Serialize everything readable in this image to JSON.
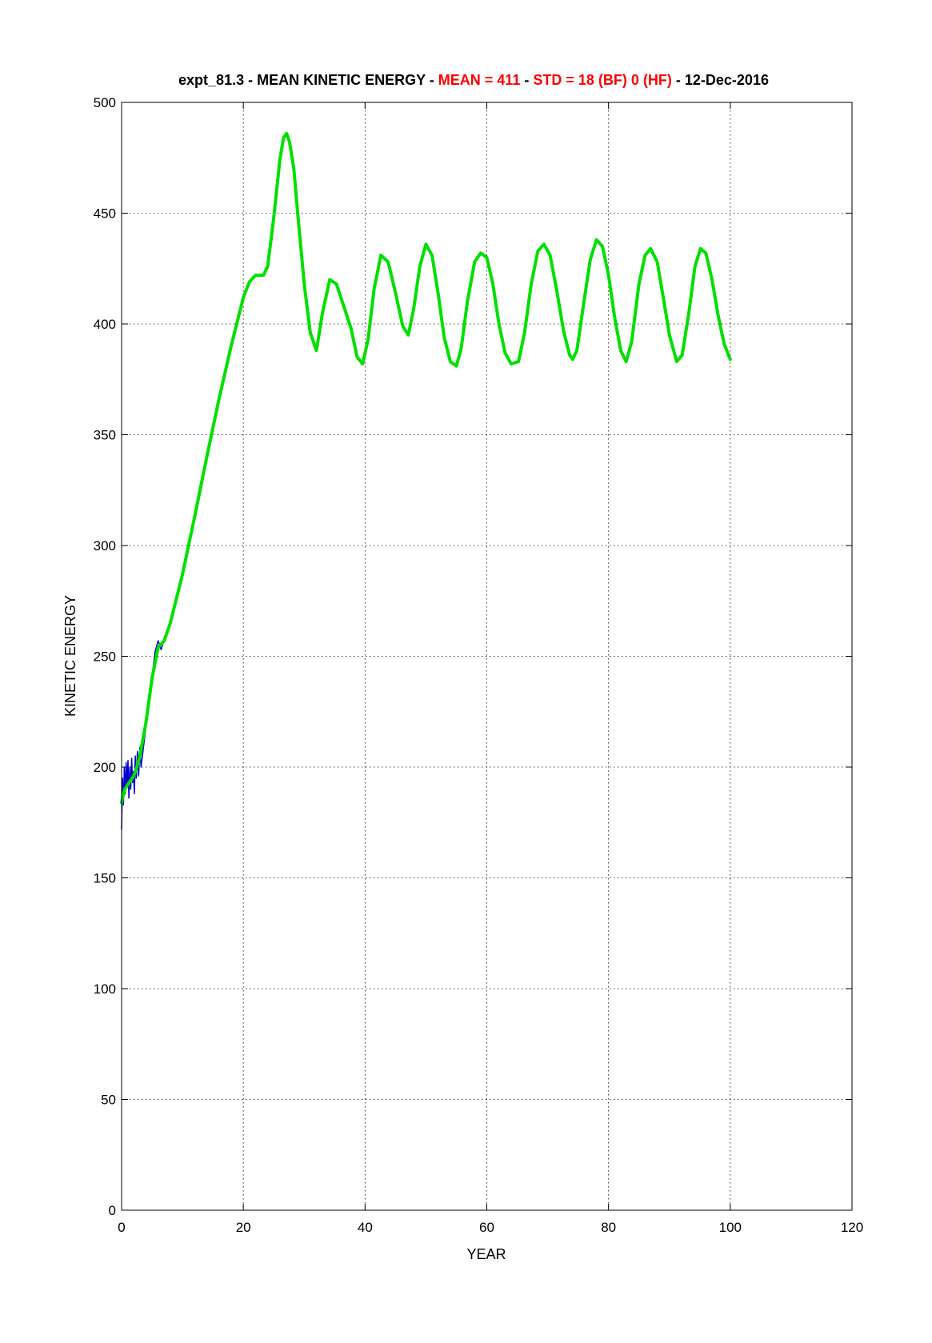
{
  "chart_data": {
    "type": "line",
    "title": {
      "prefix": "expt_81.3 - MEAN KINETIC ENERGY - ",
      "mean_label": "MEAN =   411",
      "sep1": " - ",
      "std_label": "STD =   18 (BF)    0 (HF)",
      "suffix": " - 12-Dec-2016"
    },
    "xlabel": "YEAR",
    "ylabel": "KINETIC ENERGY",
    "xlim": [
      0,
      120
    ],
    "ylim": [
      0,
      500
    ],
    "xticks": [
      "0",
      "20",
      "40",
      "60",
      "80",
      "100",
      "120"
    ],
    "yticks": [
      "0",
      "50",
      "100",
      "150",
      "200",
      "250",
      "300",
      "350",
      "400",
      "450",
      "500"
    ],
    "grid": true,
    "colors": {
      "high_freq": "#0000cc",
      "band_filtered": "#00e000",
      "title_accent": "#ff0000"
    },
    "series": [
      {
        "color": "#0000cc",
        "x": [
          0,
          0.15,
          0.3,
          0.45,
          0.6,
          0.75,
          0.9,
          1.05,
          1.2,
          1.35,
          1.5,
          1.65,
          1.8,
          1.95,
          2.1,
          2.25,
          2.4,
          2.6,
          2.8,
          3.0,
          3.2,
          5.5,
          6.0,
          6.5,
          7.0
        ],
        "y": [
          172,
          195,
          183,
          200,
          188,
          202,
          192,
          203,
          186,
          200,
          190,
          204,
          193,
          198,
          188,
          205,
          195,
          207,
          196,
          209,
          200,
          252,
          257,
          253,
          258
        ]
      },
      {
        "color": "#00e000",
        "x": [
          0,
          0.5,
          1,
          1.5,
          2,
          2.5,
          3,
          4,
          5,
          6,
          7,
          8,
          10,
          12,
          14,
          16,
          18,
          20,
          21,
          22,
          22.7,
          23.3,
          24,
          25,
          26,
          26.6,
          27.1,
          27.6,
          28.3,
          29,
          30,
          31,
          32,
          33,
          34.2,
          35.3,
          36.5,
          37.7,
          38.7,
          39.6,
          40.5,
          41.5,
          42.6,
          43.8,
          45,
          46.2,
          47.1,
          48,
          49,
          50,
          51,
          52,
          53,
          54,
          55,
          55.8,
          56.8,
          58,
          59,
          60,
          61,
          62,
          63,
          64,
          65.2,
          66.2,
          67.3,
          68.4,
          69.4,
          70.4,
          71.5,
          72.6,
          73.6,
          74.1,
          74.8,
          75.8,
          77,
          78,
          79,
          80,
          81,
          82,
          82.9,
          83.8,
          85,
          86,
          86.9,
          88,
          89,
          90,
          91.2,
          92.1,
          93.2,
          94.2,
          95.1,
          96,
          97,
          98,
          99,
          100
        ],
        "y": [
          184,
          190,
          192,
          194,
          196,
          200,
          205,
          220,
          240,
          254,
          257,
          265,
          287,
          313,
          340,
          366,
          390,
          412,
          419,
          422,
          422,
          422,
          426,
          448,
          474,
          484,
          486,
          482,
          470,
          448,
          418,
          396,
          388,
          405,
          420,
          418,
          408,
          398,
          385,
          382,
          393,
          416,
          431,
          428,
          414,
          399,
          395,
          407,
          426,
          436,
          431,
          414,
          394,
          383,
          381,
          389,
          410,
          428,
          432,
          430,
          418,
          400,
          387,
          382,
          383,
          396,
          418,
          433,
          436,
          431,
          415,
          397,
          386,
          384,
          388,
          407,
          429,
          438,
          435,
          422,
          403,
          388,
          383,
          392,
          418,
          431,
          434,
          428,
          412,
          395,
          383,
          386,
          405,
          426,
          434,
          432,
          420,
          404,
          391,
          384
        ]
      }
    ]
  }
}
